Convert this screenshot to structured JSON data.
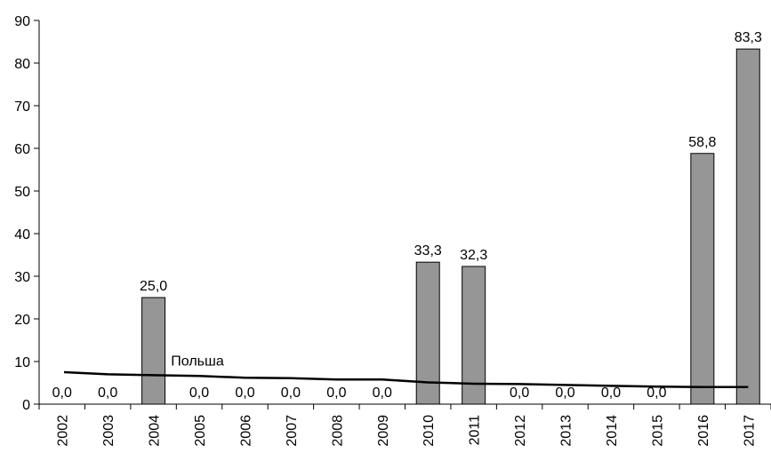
{
  "chart_data": {
    "type": "bar",
    "categories": [
      "2002",
      "2003",
      "2004",
      "2005",
      "2006",
      "2007",
      "2008",
      "2009",
      "2010",
      "2011",
      "2012",
      "2013",
      "2014",
      "2015",
      "2016",
      "2017"
    ],
    "series": [
      {
        "values": [
          0,
          0,
          25,
          0,
          0,
          0,
          0,
          0,
          33.3,
          32.3,
          0,
          0,
          0,
          0,
          58.8,
          83.3
        ],
        "data_labels": [
          "0,0",
          "0,0",
          "25,0",
          "0,0",
          "0,0",
          "0,0",
          "0,0",
          "0,0",
          "33,3",
          "32,3",
          "0,0",
          "0,0",
          "0,0",
          "0,0",
          "58,8",
          "83,3"
        ],
        "color": "#969696"
      },
      {
        "name": "Польша",
        "type": "line",
        "values": [
          7.5,
          7.0,
          6.8,
          6.6,
          6.2,
          6.1,
          5.8,
          5.8,
          5.1,
          4.8,
          4.7,
          4.5,
          4.3,
          4.1,
          4.0,
          4.0
        ],
        "color": "#000000"
      }
    ],
    "ylim": [
      0,
      90
    ],
    "yticks": [
      0,
      10,
      20,
      30,
      40,
      50,
      60,
      70,
      80,
      90
    ],
    "ytick_labels": [
      "0",
      "10",
      "20",
      "30",
      "40",
      "50",
      "60",
      "70",
      "80",
      "90"
    ],
    "grid": false,
    "legend": "none"
  }
}
